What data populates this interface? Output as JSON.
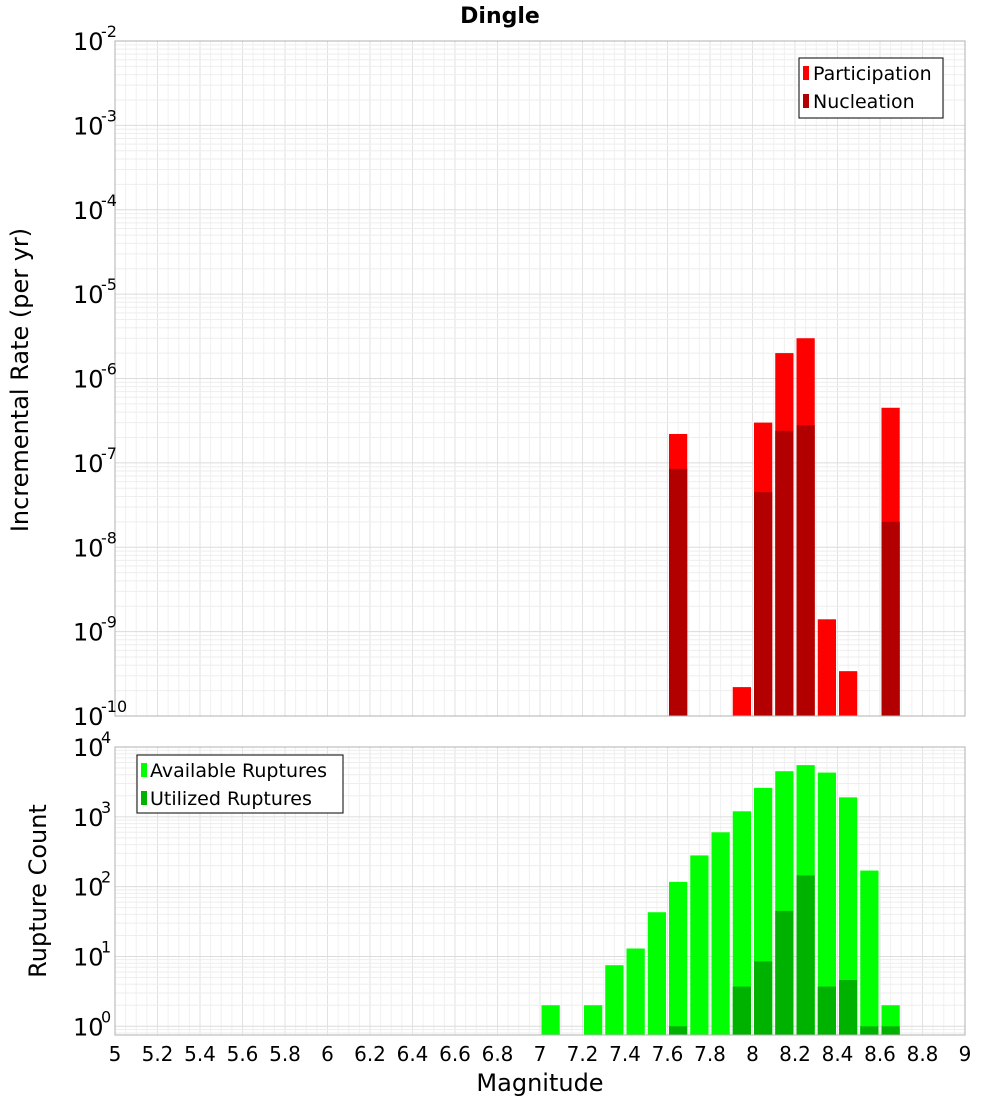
{
  "chart_data": [
    {
      "type": "bar",
      "title": "Dingle",
      "ylabel": "Incremental Rate (per yr)",
      "xlim": [
        5,
        9
      ],
      "ylim": [
        1e-10,
        0.01
      ],
      "yscale": "log",
      "grid": true,
      "legend_position": "top-right",
      "y_tick_bases": [
        "10",
        "10",
        "10",
        "10",
        "10",
        "10",
        "10",
        "10",
        "10"
      ],
      "y_tick_exponents": [
        "-10",
        "-9",
        "-8",
        "-7",
        "-6",
        "-5",
        "-4",
        "-3",
        "-2"
      ],
      "bar_width": 0.1,
      "series": [
        {
          "name": "Participation",
          "color": "#ff0000",
          "x": [
            7.65,
            7.95,
            8.05,
            8.15,
            8.25,
            8.35,
            8.45,
            8.65
          ],
          "values": [
            2.2e-07,
            2.2e-10,
            3e-07,
            2e-06,
            3e-06,
            1.4e-09,
            3.4e-10,
            4.5e-07
          ]
        },
        {
          "name": "Nucleation",
          "color": "#b20000",
          "x": [
            7.65,
            8.05,
            8.15,
            8.25,
            8.65
          ],
          "values": [
            8.5e-08,
            4.5e-08,
            2.4e-07,
            2.8e-07,
            2e-08
          ]
        }
      ]
    },
    {
      "type": "bar",
      "xlabel": "Magnitude",
      "ylabel": "Rupture Count",
      "xlim": [
        5,
        9
      ],
      "ylim": [
        0.75,
        10000
      ],
      "yscale": "log",
      "grid": true,
      "legend_position": "top-left",
      "y_tick_bases": [
        "10",
        "10",
        "10",
        "10",
        "10"
      ],
      "y_tick_exponents": [
        "0",
        "1",
        "2",
        "3",
        "4"
      ],
      "x_ticks": [
        "5",
        "5.2",
        "5.4",
        "5.6",
        "5.8",
        "6",
        "6.2",
        "6.4",
        "6.6",
        "6.8",
        "7",
        "7.2",
        "7.4",
        "7.6",
        "7.8",
        "8",
        "8.2",
        "8.4",
        "8.6",
        "8.8",
        "9"
      ],
      "bar_width": 0.1,
      "series": [
        {
          "name": "Available Ruptures",
          "color": "#00ff00",
          "x": [
            7.05,
            7.25,
            7.35,
            7.45,
            7.55,
            7.65,
            7.75,
            7.85,
            7.95,
            8.05,
            8.15,
            8.25,
            8.35,
            8.45,
            8.55,
            8.65
          ],
          "values": [
            2,
            2,
            7.5,
            13,
            43,
            117,
            280,
            600,
            1200,
            2600,
            4500,
            5500,
            4300,
            1900,
            170,
            2
          ]
        },
        {
          "name": "Utilized Ruptures",
          "color": "#00b200",
          "x": [
            7.65,
            7.95,
            8.05,
            8.15,
            8.25,
            8.35,
            8.45,
            8.55,
            8.65
          ],
          "values": [
            1,
            3.7,
            8.5,
            45,
            145,
            3.7,
            4.6,
            1,
            1
          ]
        }
      ]
    }
  ]
}
